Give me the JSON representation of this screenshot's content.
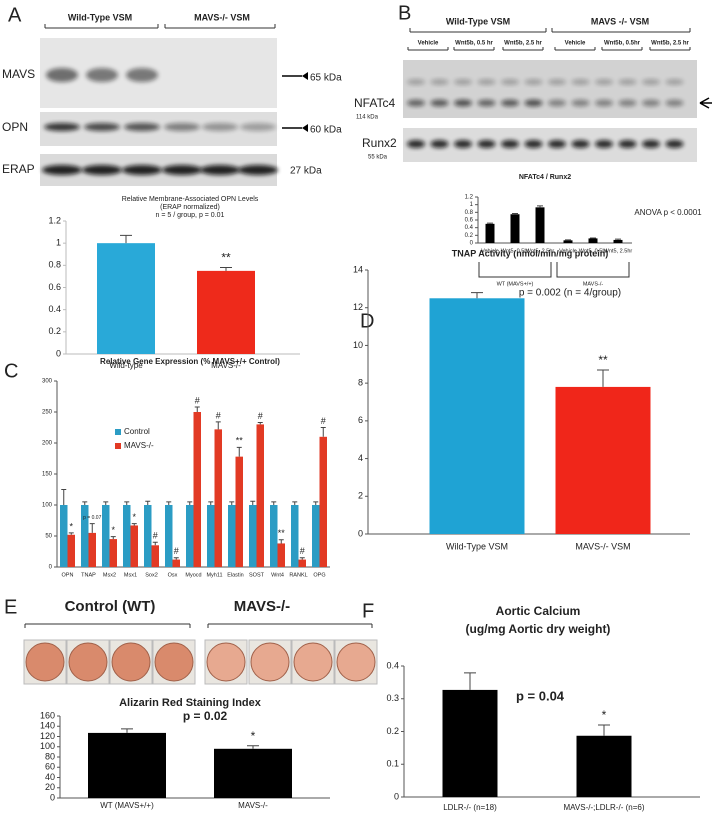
{
  "figure": {
    "panel_labels": [
      "A",
      "B",
      "C",
      "D",
      "E",
      "F"
    ],
    "a": {
      "groups": [
        "Wild-Type VSM",
        "MAVS-/- VSM"
      ],
      "bands": [
        "MAVS",
        "OPN",
        "ERAP"
      ],
      "sizes": [
        "65 kDa",
        "60 kDa",
        "27 kDa"
      ]
    },
    "b": {
      "groups": [
        "Wild-Type VSM",
        "MAVS -/- VSM"
      ],
      "lanes": [
        "Vehicle",
        "Wnt5b, 0.5 hr",
        "Wnt5b, 2.5 hr",
        "Vehicle",
        "Wnt5b, 0.5hr",
        "Wnt5b, 2.5 hr"
      ],
      "bands": [
        "NFATc4",
        "Runx2"
      ],
      "sizes": [
        "114 kDa",
        "55 kDa"
      ]
    },
    "e": {
      "groups": [
        "Control (WT)",
        "MAVS-/-"
      ]
    }
  },
  "chart_data": [
    {
      "type": "bar",
      "title": "Relative Membrane-Associated OPN Levels",
      "subtitle": "(ERAP normalized)",
      "note": "n = 5 / group, p = 0.01",
      "categories": [
        "Wild-type",
        "MAVS-/-"
      ],
      "values": [
        1.0,
        0.75
      ],
      "errors": [
        0.07,
        0.03
      ],
      "colors": [
        "#29a9d8",
        "#ee2a1b"
      ],
      "ylim": [
        0,
        1.2
      ],
      "yticks": [
        0,
        0.2,
        0.4,
        0.6,
        0.8,
        1,
        1.2
      ],
      "significance": [
        null,
        "**"
      ]
    },
    {
      "type": "bar",
      "title": "NFATc4 / Runx2",
      "categories": [
        "Vehicle",
        "Wnt5, 0.5hr",
        "Wnt5, 2.5hr",
        "Vehicle",
        "Wnt5, 0.5hr",
        "Wnt5, 2.5hr"
      ],
      "values": [
        0.5,
        0.75,
        0.93,
        0.07,
        0.12,
        0.08
      ],
      "errors": [
        0.02,
        0.02,
        0.04,
        0.01,
        0.01,
        0.02
      ],
      "color": "#000000",
      "ylim": [
        0,
        1.2
      ],
      "yticks": [
        0,
        0.2,
        0.4,
        0.6,
        0.8,
        1,
        1.2
      ],
      "groups": [
        "WT (MAVS+/+)",
        "MAVS-/-"
      ],
      "annotation": "ANOVA p < 0.0001"
    },
    {
      "type": "grouped_bar",
      "title": "Relative Gene Expression (% MAVS+/+ Control)",
      "categories": [
        "OPN",
        "TNAP",
        "Msx2",
        "Msx1",
        "Sox2",
        "Osx",
        "Myocd",
        "Myh11",
        "Elastin",
        "SOST",
        "Wnt4",
        "RANKL",
        "OPG"
      ],
      "series": [
        {
          "name": "Control",
          "color": "#2b9cc4",
          "values": [
            100,
            100,
            100,
            100,
            100,
            100,
            100,
            100,
            100,
            100,
            100,
            100,
            100
          ],
          "errors": [
            25,
            5,
            5,
            5,
            6,
            5,
            5,
            5,
            5,
            6,
            5,
            5,
            5
          ]
        },
        {
          "name": "MAVS-/-",
          "color": "#e23a24",
          "values": [
            52,
            55,
            45,
            67,
            35,
            12,
            250,
            222,
            178,
            230,
            38,
            12,
            210
          ],
          "errors": [
            3,
            15,
            4,
            3,
            5,
            3,
            8,
            12,
            15,
            3,
            6,
            3,
            15
          ]
        }
      ],
      "ylim": [
        0,
        300
      ],
      "yticks": [
        0,
        50,
        100,
        150,
        200,
        250,
        300
      ],
      "significance": [
        "*",
        "p = 0.07",
        "*",
        "*",
        "#",
        "#",
        "#",
        "#",
        "**",
        "#",
        "**",
        "#",
        "#"
      ]
    },
    {
      "type": "bar",
      "title": "TNAP Activity (nmol/min/mg protein)",
      "categories": [
        "Wild-Type VSM",
        "MAVS-/- VSM"
      ],
      "values": [
        12.5,
        7.8
      ],
      "errors": [
        0.3,
        0.9
      ],
      "colors": [
        "#1fa3d4",
        "#f0261a"
      ],
      "ylim": [
        0,
        14
      ],
      "yticks": [
        0,
        2,
        4,
        6,
        8,
        10,
        12,
        14
      ],
      "annotation": "p = 0.002 (n = 4/group)",
      "significance": [
        null,
        "**"
      ]
    },
    {
      "type": "bar",
      "title": "Alizarin Red Staining Index",
      "categories": [
        "WT (MAVS+/+)",
        "MAVS-/-"
      ],
      "values": [
        127,
        96
      ],
      "errors": [
        8,
        6
      ],
      "color": "#000000",
      "ylim": [
        0,
        160
      ],
      "yticks": [
        0,
        20,
        40,
        60,
        80,
        100,
        120,
        140,
        160
      ],
      "annotation": "p = 0.02",
      "significance": [
        null,
        "*"
      ]
    },
    {
      "type": "bar",
      "title": "Aortic Calcium",
      "subtitle": "(ug/mg Aortic dry weight)",
      "categories": [
        "LDLR-/- (n=18)",
        "MAVS-/-;LDLR-/- (n=6)"
      ],
      "values": [
        0.327,
        0.187
      ],
      "errors": [
        0.052,
        0.033
      ],
      "color": "#000000",
      "ylim": [
        0,
        0.4
      ],
      "yticks": [
        0,
        0.1,
        0.2,
        0.3,
        0.4
      ],
      "annotation": "p = 0.04",
      "significance": [
        null,
        "*"
      ]
    }
  ]
}
